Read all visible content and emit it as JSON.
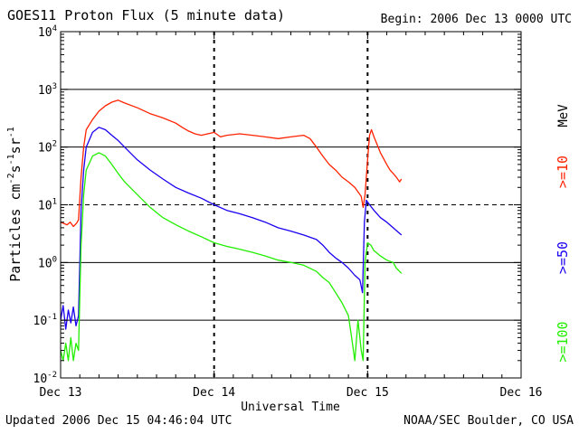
{
  "header": {
    "title": "GOES11 Proton Flux (5 minute data)",
    "begin": "Begin: 2006 Dec 13 0000 UTC"
  },
  "footer": {
    "updated": "Updated 2006 Dec 15 04:46:04 UTC",
    "credit": "NOAA/SEC Boulder, CO USA"
  },
  "colors": {
    "ge10": "#ff2200",
    "ge50": "#1a00ee",
    "ge100": "#22ee00"
  },
  "chart_data": {
    "type": "line",
    "title": "GOES11 Proton Flux (5 minute data)",
    "xlabel": "Universal Time",
    "ylabel_parts": [
      "Particles cm",
      "-2",
      "s",
      "-1",
      "sr",
      "-1"
    ],
    "yscale": "log",
    "ylim": [
      0.01,
      10000
    ],
    "xlim_hours": [
      0,
      72
    ],
    "x_ticks": [
      {
        "hour": 0,
        "label": "Dec 13"
      },
      {
        "hour": 24,
        "label": "Dec 14"
      },
      {
        "hour": 48,
        "label": "Dec 15"
      },
      {
        "hour": 72,
        "label": "Dec 16"
      }
    ],
    "y_ticks": [
      {
        "exp": -2,
        "base": "10",
        "sup": "-2"
      },
      {
        "exp": -1,
        "base": "10",
        "sup": "-1"
      },
      {
        "exp": 0,
        "base": "10",
        "sup": "0"
      },
      {
        "exp": 1,
        "base": "10",
        "sup": "1"
      },
      {
        "exp": 2,
        "base": "10",
        "sup": "2"
      },
      {
        "exp": 3,
        "base": "10",
        "sup": "3"
      },
      {
        "exp": 4,
        "base": "10",
        "sup": "4"
      }
    ],
    "solid_gridlines": [
      0.1,
      1,
      100,
      1000
    ],
    "dashed_gridlines": [
      10
    ],
    "legend_unit": "MeV",
    "series": [
      {
        "name": ">=10",
        "color": "#ff2200",
        "points": [
          [
            0.0,
            5.0
          ],
          [
            1.0,
            4.5
          ],
          [
            1.5,
            5.0
          ],
          [
            2.0,
            4.2
          ],
          [
            2.5,
            4.8
          ],
          [
            2.8,
            5.5
          ],
          [
            3.2,
            30
          ],
          [
            3.6,
            100
          ],
          [
            4.0,
            200
          ],
          [
            5.0,
            300
          ],
          [
            6.0,
            420
          ],
          [
            7.0,
            520
          ],
          [
            8.0,
            600
          ],
          [
            9.0,
            650
          ],
          [
            10.0,
            580
          ],
          [
            12.0,
            480
          ],
          [
            14.0,
            380
          ],
          [
            16.0,
            320
          ],
          [
            18.0,
            260
          ],
          [
            19.0,
            220
          ],
          [
            20.0,
            190
          ],
          [
            21.0,
            170
          ],
          [
            22.0,
            160
          ],
          [
            23.0,
            170
          ],
          [
            24.0,
            180
          ],
          [
            25.0,
            150
          ],
          [
            26.0,
            160
          ],
          [
            28.0,
            170
          ],
          [
            30.0,
            160
          ],
          [
            32.0,
            150
          ],
          [
            34.0,
            140
          ],
          [
            36.0,
            150
          ],
          [
            38.0,
            160
          ],
          [
            39.0,
            140
          ],
          [
            40.0,
            100
          ],
          [
            41.0,
            70
          ],
          [
            42.0,
            50
          ],
          [
            43.0,
            40
          ],
          [
            44.0,
            30
          ],
          [
            45.0,
            25
          ],
          [
            46.0,
            20
          ],
          [
            47.0,
            14
          ],
          [
            47.3,
            9
          ],
          [
            47.6,
            15
          ],
          [
            48.0,
            60
          ],
          [
            48.3,
            160
          ],
          [
            48.6,
            200
          ],
          [
            49.0,
            150
          ],
          [
            49.5,
            110
          ],
          [
            50.0,
            80
          ],
          [
            51.0,
            50
          ],
          [
            51.5,
            40
          ],
          [
            52.0,
            35
          ],
          [
            52.5,
            30
          ],
          [
            53.0,
            25
          ],
          [
            53.3,
            28
          ]
        ]
      },
      {
        "name": ">=50",
        "color": "#1a00ee",
        "points": [
          [
            0.0,
            0.1
          ],
          [
            0.4,
            0.18
          ],
          [
            0.8,
            0.07
          ],
          [
            1.2,
            0.15
          ],
          [
            1.6,
            0.09
          ],
          [
            2.0,
            0.17
          ],
          [
            2.4,
            0.08
          ],
          [
            2.8,
            0.12
          ],
          [
            3.2,
            8
          ],
          [
            3.6,
            40
          ],
          [
            4.0,
            100
          ],
          [
            5.0,
            180
          ],
          [
            6.0,
            220
          ],
          [
            7.0,
            200
          ],
          [
            8.0,
            160
          ],
          [
            9.0,
            130
          ],
          [
            10.0,
            100
          ],
          [
            12.0,
            60
          ],
          [
            14.0,
            40
          ],
          [
            16.0,
            28
          ],
          [
            18.0,
            20
          ],
          [
            20.0,
            16
          ],
          [
            22.0,
            13
          ],
          [
            24.0,
            10
          ],
          [
            26.0,
            8
          ],
          [
            28.0,
            7
          ],
          [
            30.0,
            6
          ],
          [
            32.0,
            5
          ],
          [
            34.0,
            4
          ],
          [
            36.0,
            3.5
          ],
          [
            38.0,
            3
          ],
          [
            40.0,
            2.5
          ],
          [
            41.0,
            2
          ],
          [
            42.0,
            1.5
          ],
          [
            43.0,
            1.2
          ],
          [
            44.0,
            1.0
          ],
          [
            45.0,
            0.8
          ],
          [
            46.0,
            0.6
          ],
          [
            46.8,
            0.5
          ],
          [
            47.2,
            0.3
          ],
          [
            47.5,
            5
          ],
          [
            47.8,
            12
          ],
          [
            48.3,
            10
          ],
          [
            49.0,
            8
          ],
          [
            50.0,
            6
          ],
          [
            51.0,
            5
          ],
          [
            52.0,
            4
          ],
          [
            53.0,
            3.2
          ],
          [
            53.3,
            3.0
          ]
        ]
      },
      {
        "name": ">=100",
        "color": "#22ee00",
        "points": [
          [
            0.0,
            0.03
          ],
          [
            0.4,
            0.02
          ],
          [
            0.8,
            0.04
          ],
          [
            1.2,
            0.02
          ],
          [
            1.6,
            0.05
          ],
          [
            2.0,
            0.02
          ],
          [
            2.4,
            0.04
          ],
          [
            2.8,
            0.03
          ],
          [
            3.2,
            2
          ],
          [
            3.6,
            15
          ],
          [
            4.0,
            40
          ],
          [
            5.0,
            70
          ],
          [
            6.0,
            80
          ],
          [
            7.0,
            70
          ],
          [
            8.0,
            50
          ],
          [
            9.0,
            35
          ],
          [
            10.0,
            25
          ],
          [
            12.0,
            15
          ],
          [
            14.0,
            9
          ],
          [
            16.0,
            6
          ],
          [
            18.0,
            4.5
          ],
          [
            20.0,
            3.5
          ],
          [
            22.0,
            2.8
          ],
          [
            24.0,
            2.2
          ],
          [
            26.0,
            1.9
          ],
          [
            28.0,
            1.7
          ],
          [
            30.0,
            1.5
          ],
          [
            32.0,
            1.3
          ],
          [
            34.0,
            1.1
          ],
          [
            36.0,
            1.0
          ],
          [
            38.0,
            0.9
          ],
          [
            40.0,
            0.7
          ],
          [
            41.0,
            0.55
          ],
          [
            42.0,
            0.45
          ],
          [
            43.0,
            0.3
          ],
          [
            44.0,
            0.2
          ],
          [
            45.0,
            0.12
          ],
          [
            45.5,
            0.05
          ],
          [
            46.0,
            0.02
          ],
          [
            46.5,
            0.1
          ],
          [
            47.0,
            0.03
          ],
          [
            47.3,
            0.02
          ],
          [
            47.6,
            1.0
          ],
          [
            48.0,
            2.2
          ],
          [
            48.5,
            2.0
          ],
          [
            49.0,
            1.6
          ],
          [
            50.0,
            1.3
          ],
          [
            51.0,
            1.1
          ],
          [
            52.0,
            1.0
          ],
          [
            52.5,
            0.8
          ],
          [
            53.0,
            0.7
          ],
          [
            53.3,
            0.65
          ]
        ]
      }
    ]
  }
}
